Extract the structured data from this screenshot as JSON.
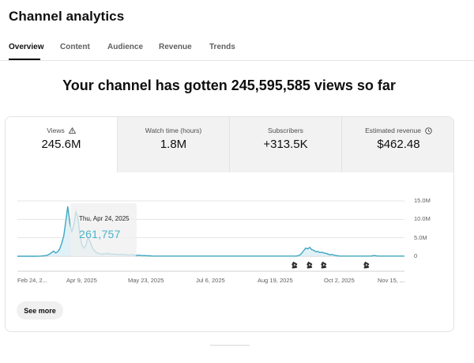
{
  "page": {
    "title": "Channel analytics"
  },
  "tabs": [
    {
      "label": "Overview",
      "active": true
    },
    {
      "label": "Content"
    },
    {
      "label": "Audience"
    },
    {
      "label": "Revenue"
    },
    {
      "label": "Trends"
    }
  ],
  "headline": "Your channel has gotten 245,595,585 views so far",
  "metrics": [
    {
      "label": "Views",
      "value": "245.6M",
      "icon": "warning-icon",
      "active": true
    },
    {
      "label": "Watch time (hours)",
      "value": "1.8M"
    },
    {
      "label": "Subscribers",
      "value": "+313.5K"
    },
    {
      "label": "Estimated revenue",
      "value": "$462.48",
      "icon": "clock-icon"
    }
  ],
  "tooltip": {
    "date": "Thu, Apr 24, 2025",
    "value": "261,757"
  },
  "see_more_label": "See more",
  "colors": {
    "line": "#3ea6c1",
    "area": "#d8eef5",
    "tooltip_value": "#4ab3c8"
  },
  "chart_data": {
    "type": "line",
    "y_ticks": [
      "15.0M",
      "10.0M",
      "5.0M",
      "0"
    ],
    "x_ticks": [
      "Feb 24, 2...",
      "Apr 9, 2025",
      "May 23, 2025",
      "Jul 6, 2025",
      "Aug 19, 2025",
      "Oct 2, 2025",
      "Nov 15, ..."
    ],
    "series": [
      {
        "values": [
          0.01,
          0.01,
          0.01,
          0.01,
          0.01,
          0.01,
          0.01,
          0.01,
          0.01,
          0.01,
          0.02,
          0.03,
          0.06,
          0.1,
          0.18,
          0.3,
          0.6,
          1.0,
          1.4,
          0.9,
          1.2,
          2.0,
          3.5,
          5.5,
          9.5,
          13.5,
          9.0,
          6.5,
          8.5,
          12.0,
          10.5,
          6.0,
          3.0,
          2.2,
          3.0,
          5.0,
          4.0,
          2.5,
          1.6,
          1.1,
          0.8,
          0.7,
          0.5,
          0.7,
          0.6,
          0.8,
          0.6,
          0.5,
          0.6,
          0.5,
          0.4,
          0.5,
          0.4,
          0.5,
          0.4,
          0.3,
          0.35,
          0.4,
          0.3,
          0.2,
          0.3,
          0.25,
          0.15,
          0.2,
          0.15,
          0.1,
          0.1,
          0.05,
          0.05,
          0.05,
          0.05,
          0.05,
          0.05,
          0.05,
          0.05,
          0.05,
          0.05,
          0.05,
          0.05,
          0.05,
          0.05,
          0.05,
          0.05,
          0.05,
          0.05,
          0.05,
          0.05,
          0.05,
          0.05,
          0.05,
          0.05,
          0.05,
          0.05,
          0.05,
          0.05,
          0.05,
          0.05,
          0.05,
          0.05,
          0.05,
          0.05,
          0.05,
          0.05,
          0.05,
          0.05,
          0.05,
          0.05,
          0.05,
          0.05,
          0.05,
          0.05,
          0.05,
          0.05,
          0.05,
          0.05,
          0.05,
          0.05,
          0.05,
          0.05,
          0.05,
          0.05,
          0.05,
          0.05,
          0.05,
          0.05,
          0.05,
          0.05,
          0.05,
          0.05,
          0.05,
          0.05,
          0.05,
          0.05,
          0.05,
          0.05,
          0.05,
          0.05,
          0.05,
          0.05,
          0.1,
          0.3,
          0.8,
          1.5,
          2.2,
          2.0,
          2.4,
          1.8,
          1.6,
          1.2,
          1.3,
          1.0,
          1.1,
          0.9,
          0.8,
          0.6,
          0.4,
          0.5,
          0.3,
          0.2,
          0.1,
          0.05,
          0.05,
          0.05,
          0.05,
          0.05,
          0.05,
          0.05,
          0.05,
          0.05,
          0.05,
          0.05,
          0.05,
          0.05,
          0.05,
          0.05,
          0.05,
          0.1,
          0.2,
          0.1,
          0.05,
          0.05,
          0.05,
          0.05,
          0.05,
          0.05,
          0.05,
          0.05,
          0.05,
          0.05,
          0.05,
          0.05,
          0.05,
          0.05
        ]
      }
    ],
    "ylim": [
      0,
      15
    ],
    "markers": [
      "short-icon",
      "short-icon",
      "short-icon",
      "short-icon"
    ]
  }
}
